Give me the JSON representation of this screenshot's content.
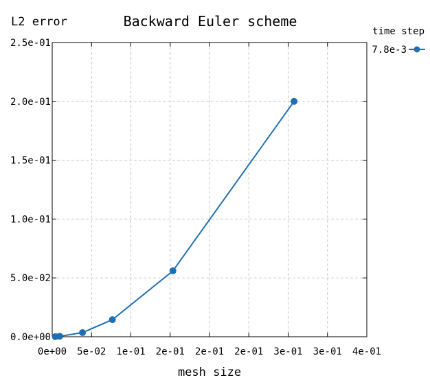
{
  "chart_data": {
    "type": "line",
    "title": "Backward Euler scheme",
    "xlabel": "mesh size",
    "ylabel": "L2 error",
    "xlim": [
      0,
      0.4
    ],
    "ylim": [
      0,
      0.25
    ],
    "x_tick_values": [
      0,
      0.05,
      0.1,
      0.15,
      0.2,
      0.25,
      0.3,
      0.35,
      0.4
    ],
    "x_tick_labels": [
      "0e+00",
      "5e-02",
      "1e-01",
      "2e-01",
      "2e-01",
      "2e-01",
      "3e-01",
      "3e-01",
      "4e-01"
    ],
    "y_tick_values": [
      0,
      0.05,
      0.1,
      0.15,
      0.2,
      0.25
    ],
    "y_tick_labels": [
      "0.0e+00",
      "5.0e-02",
      "1.0e-01",
      "1.5e-01",
      "2.0e-01",
      "2.5e-01"
    ],
    "grid": true,
    "legend": {
      "title": "time step",
      "placement": "top-right outside"
    },
    "series": [
      {
        "name": "7.8e-3",
        "color": "#1f6fb5",
        "marker": "circle",
        "x": [
          0.004,
          0.0095,
          0.0385,
          0.0765,
          0.1535,
          0.3075
        ],
        "y": [
          0.0001,
          0.0004,
          0.0035,
          0.0145,
          0.056,
          0.2
        ]
      }
    ]
  }
}
